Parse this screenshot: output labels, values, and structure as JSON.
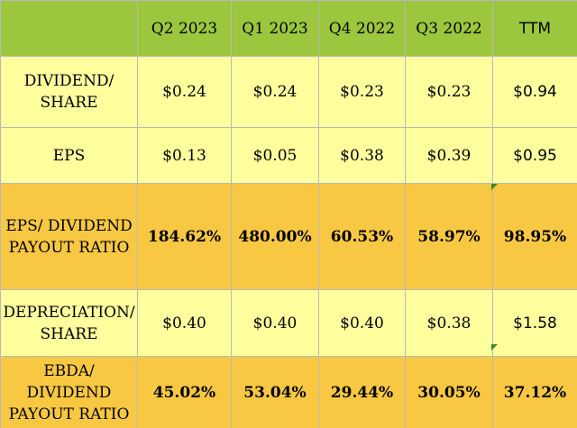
{
  "chart_data": {
    "type": "table",
    "columns": [
      "",
      "Q2 2023",
      "Q1 2023",
      "Q4 2022",
      "Q3 2022",
      "TTM"
    ],
    "rows": [
      {
        "label_lines": [
          "DIVIDEND/",
          "SHARE"
        ],
        "values": [
          "$0.24",
          "$0.24",
          "$0.23",
          "$0.23",
          "$0.94"
        ]
      },
      {
        "label_lines": [
          "EPS"
        ],
        "values": [
          "$0.13",
          "$0.05",
          "$0.38",
          "$0.39",
          "$0.95"
        ]
      },
      {
        "label_lines": [
          "EPS/ DIVIDEND",
          "PAYOUT RATIO"
        ],
        "values": [
          "184.62%",
          "480.00%",
          "60.53%",
          "58.97%",
          "98.95%"
        ]
      },
      {
        "label_lines": [
          "DEPRECIATION/",
          "SHARE"
        ],
        "values": [
          "$0.40",
          "$0.40",
          "$0.40",
          "$0.38",
          "$1.58"
        ]
      },
      {
        "label_lines": [
          "EBDA/",
          "DIVIDEND",
          "PAYOUT RATIO"
        ],
        "values": [
          "45.02%",
          "53.04%",
          "29.44%",
          "30.05%",
          "37.12%"
        ]
      }
    ],
    "colors": {
      "header": "#9bc63d",
      "light_row": "#ffff9e",
      "dark_row": "#f8c843",
      "cell_marker": "#3a8a2a"
    }
  }
}
